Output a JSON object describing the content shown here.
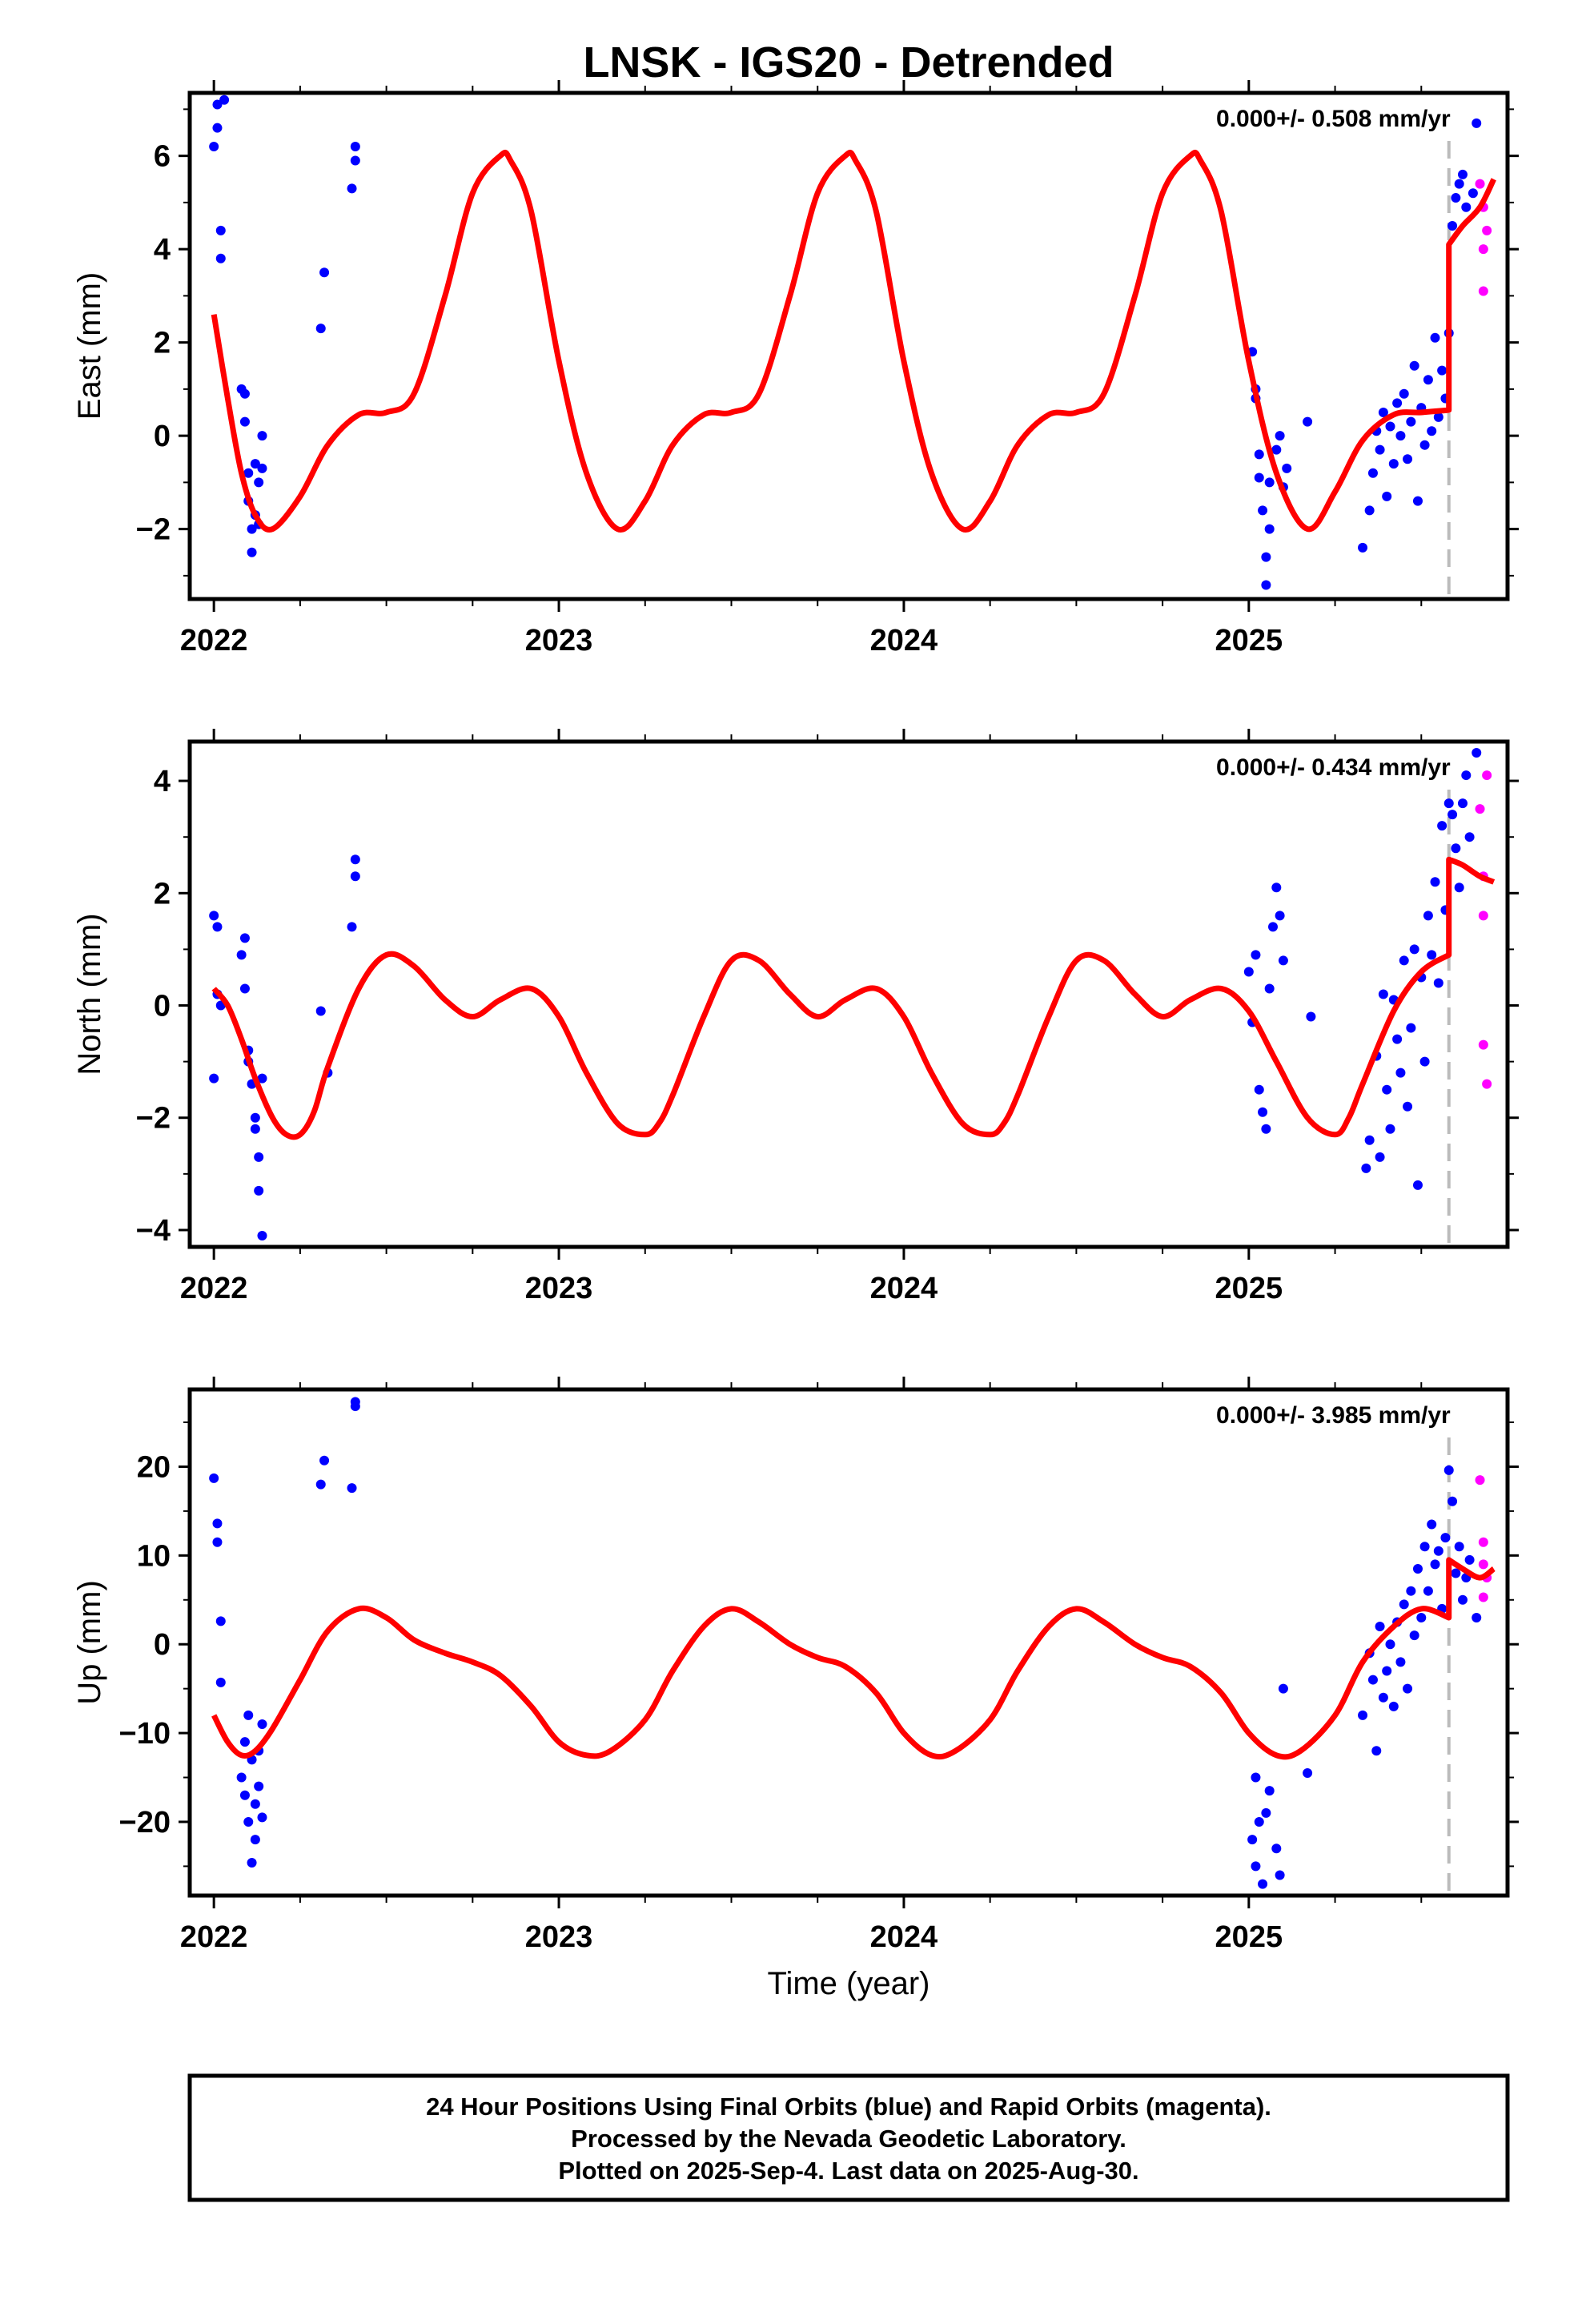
{
  "figure": {
    "title": "LNSK - IGS20 - Detrended",
    "xlabel": "Time (year)",
    "footer": [
      "24 Hour Positions Using Final Orbits (blue) and Rapid Orbits (magenta).",
      "Processed by the Nevada Geodetic Laboratory.",
      "Plotted on 2025-Sep-4. Last data on 2025-Aug-30."
    ]
  },
  "colors": {
    "final": "#0000ff",
    "rapid": "#ff00ff",
    "model": "#ff0000",
    "marker": "#bbbbbb",
    "frame": "#000000"
  },
  "chart_data": [
    {
      "type": "scatter",
      "component": "east",
      "ylabel": "East (mm)",
      "rate_label": "0.000+/- 0.508 mm/yr",
      "xlim": [
        2021.93,
        2025.75
      ],
      "ylim": [
        -3.5,
        7.35
      ],
      "x_ticks": [
        2022,
        2023,
        2024,
        2025
      ],
      "y_ticks": [
        -2,
        0,
        2,
        4,
        6
      ],
      "step_epoch": 2025.58,
      "model_series": {
        "name": "model",
        "x": [
          2022.0,
          2022.04,
          2022.08,
          2022.12,
          2022.17,
          2022.25,
          2022.33,
          2022.42,
          2022.5,
          2022.58,
          2022.67,
          2022.75,
          2022.83,
          2022.86,
          2022.92,
          2023.0,
          2023.08,
          2023.17,
          2023.25,
          2023.33,
          2023.42,
          2023.5,
          2023.58,
          2023.67,
          2023.75,
          2023.83,
          2023.86,
          2023.92,
          2024.0,
          2024.08,
          2024.17,
          2024.25,
          2024.33,
          2024.42,
          2024.5,
          2024.58,
          2024.67,
          2024.75,
          2024.83,
          2024.86,
          2024.92,
          2025.0,
          2025.08,
          2025.17,
          2025.25,
          2025.33,
          2025.42,
          2025.5,
          2025.58,
          2025.58,
          2025.62,
          2025.67,
          2025.71
        ],
        "y": [
          2.6,
          0.8,
          -0.8,
          -1.7,
          -2.0,
          -1.3,
          -0.2,
          0.45,
          0.5,
          0.9,
          3.0,
          5.2,
          6.0,
          5.9,
          4.8,
          1.6,
          -0.8,
          -2.0,
          -1.4,
          -0.2,
          0.45,
          0.5,
          0.9,
          3.0,
          5.2,
          6.0,
          5.9,
          4.8,
          1.6,
          -0.8,
          -2.0,
          -1.4,
          -0.2,
          0.45,
          0.5,
          0.9,
          3.0,
          5.2,
          6.0,
          5.9,
          4.8,
          1.6,
          -0.8,
          -2.0,
          -1.2,
          -0.1,
          0.45,
          0.5,
          0.55,
          4.1,
          4.5,
          4.9,
          5.5
        ]
      },
      "final_series": {
        "name": "final",
        "x": [
          2022.0,
          2022.01,
          2022.01,
          2022.02,
          2022.02,
          2022.03,
          2022.08,
          2022.09,
          2022.09,
          2022.1,
          2022.1,
          2022.11,
          2022.11,
          2022.12,
          2022.12,
          2022.13,
          2022.13,
          2022.14,
          2022.14,
          2022.31,
          2022.32,
          2022.4,
          2022.41,
          2022.41,
          2025.01,
          2025.02,
          2025.02,
          2025.03,
          2025.03,
          2025.04,
          2025.05,
          2025.05,
          2025.06,
          2025.06,
          2025.08,
          2025.09,
          2025.1,
          2025.11,
          2025.17,
          2025.33,
          2025.35,
          2025.36,
          2025.37,
          2025.38,
          2025.39,
          2025.4,
          2025.41,
          2025.42,
          2025.43,
          2025.44,
          2025.45,
          2025.46,
          2025.47,
          2025.48,
          2025.49,
          2025.5,
          2025.51,
          2025.52,
          2025.53,
          2025.54,
          2025.55,
          2025.56,
          2025.57,
          2025.58,
          2025.59,
          2025.6,
          2025.61,
          2025.62,
          2025.63,
          2025.65,
          2025.66
        ],
        "y": [
          6.2,
          7.1,
          6.6,
          4.4,
          3.8,
          7.2,
          1.0,
          0.9,
          0.3,
          -0.8,
          -1.4,
          -2.0,
          -2.5,
          -1.7,
          -0.6,
          -1.0,
          -1.9,
          0.0,
          -0.7,
          2.3,
          3.5,
          5.3,
          6.2,
          5.9,
          1.8,
          1.0,
          0.8,
          -0.4,
          -0.9,
          -1.6,
          -2.6,
          -3.2,
          -2.0,
          -1.0,
          -0.3,
          0.0,
          -1.1,
          -0.7,
          0.3,
          -2.4,
          -1.6,
          -0.8,
          0.1,
          -0.3,
          0.5,
          -1.3,
          0.2,
          -0.6,
          0.7,
          0.0,
          0.9,
          -0.5,
          0.3,
          1.5,
          -1.4,
          0.6,
          -0.2,
          1.2,
          0.1,
          2.1,
          0.4,
          1.4,
          0.8,
          2.2,
          4.5,
          5.1,
          5.4,
          5.6,
          4.9,
          5.2,
          6.7
        ]
      },
      "rapid_series": {
        "name": "rapid",
        "x": [
          2025.67,
          2025.68,
          2025.68,
          2025.68,
          2025.69
        ],
        "y": [
          5.4,
          4.9,
          4.0,
          3.1,
          4.4
        ]
      }
    },
    {
      "type": "scatter",
      "component": "north",
      "ylabel": "North (mm)",
      "rate_label": "0.000+/- 0.434 mm/yr",
      "xlim": [
        2021.93,
        2025.75
      ],
      "ylim": [
        -4.3,
        4.7
      ],
      "x_ticks": [
        2022,
        2023,
        2024,
        2025
      ],
      "y_ticks": [
        -4,
        -2,
        0,
        2,
        4
      ],
      "step_epoch": 2025.58,
      "model_series": {
        "name": "model",
        "x": [
          2022.0,
          2022.04,
          2022.08,
          2022.12,
          2022.17,
          2022.21,
          2022.25,
          2022.29,
          2022.33,
          2022.42,
          2022.5,
          2022.58,
          2022.67,
          2022.75,
          2022.83,
          2022.92,
          2023.0,
          2023.08,
          2023.17,
          2023.25,
          2023.29,
          2023.33,
          2023.42,
          2023.5,
          2023.58,
          2023.67,
          2023.75,
          2023.83,
          2023.92,
          2024.0,
          2024.08,
          2024.17,
          2024.25,
          2024.29,
          2024.33,
          2024.42,
          2024.5,
          2024.58,
          2024.67,
          2024.75,
          2024.83,
          2024.92,
          2025.0,
          2025.08,
          2025.17,
          2025.25,
          2025.29,
          2025.33,
          2025.42,
          2025.5,
          2025.58,
          2025.58,
          2025.62,
          2025.67,
          2025.71
        ],
        "y": [
          0.3,
          0.0,
          -0.6,
          -1.3,
          -2.0,
          -2.3,
          -2.3,
          -1.9,
          -1.1,
          0.3,
          0.9,
          0.7,
          0.1,
          -0.2,
          0.1,
          0.3,
          -0.2,
          -1.2,
          -2.1,
          -2.3,
          -2.1,
          -1.6,
          -0.2,
          0.8,
          0.8,
          0.2,
          -0.2,
          0.1,
          0.3,
          -0.2,
          -1.2,
          -2.1,
          -2.3,
          -2.1,
          -1.6,
          -0.2,
          0.8,
          0.8,
          0.2,
          -0.2,
          0.1,
          0.3,
          -0.1,
          -1.0,
          -2.0,
          -2.3,
          -2.0,
          -1.4,
          -0.1,
          0.6,
          0.9,
          2.6,
          2.5,
          2.3,
          2.2
        ]
      },
      "final_series": {
        "name": "final",
        "x": [
          2022.0,
          2022.0,
          2022.01,
          2022.01,
          2022.02,
          2022.08,
          2022.09,
          2022.09,
          2022.1,
          2022.1,
          2022.11,
          2022.12,
          2022.12,
          2022.13,
          2022.13,
          2022.14,
          2022.14,
          2022.31,
          2022.33,
          2022.4,
          2022.41,
          2022.41,
          2025.0,
          2025.01,
          2025.02,
          2025.03,
          2025.04,
          2025.05,
          2025.06,
          2025.07,
          2025.08,
          2025.09,
          2025.1,
          2025.18,
          2025.34,
          2025.35,
          2025.37,
          2025.38,
          2025.39,
          2025.4,
          2025.41,
          2025.42,
          2025.43,
          2025.44,
          2025.45,
          2025.46,
          2025.47,
          2025.48,
          2025.49,
          2025.5,
          2025.51,
          2025.52,
          2025.53,
          2025.54,
          2025.55,
          2025.56,
          2025.57,
          2025.58,
          2025.59,
          2025.6,
          2025.61,
          2025.62,
          2025.63,
          2025.64,
          2025.66
        ],
        "y": [
          1.6,
          -1.3,
          1.4,
          0.2,
          0.0,
          0.9,
          1.2,
          0.3,
          -0.8,
          -1.0,
          -1.4,
          -2.0,
          -2.2,
          -2.7,
          -3.3,
          -4.1,
          -1.3,
          -0.1,
          -1.2,
          1.4,
          2.3,
          2.6,
          0.6,
          -0.3,
          0.9,
          -1.5,
          -1.9,
          -2.2,
          0.3,
          1.4,
          2.1,
          1.6,
          0.8,
          -0.2,
          -2.9,
          -2.4,
          -0.9,
          -2.7,
          0.2,
          -1.5,
          -2.2,
          0.1,
          -0.6,
          -1.2,
          0.8,
          -1.8,
          -0.4,
          1.0,
          -3.2,
          0.5,
          -1.0,
          1.6,
          0.9,
          2.2,
          0.4,
          3.2,
          1.7,
          3.6,
          3.4,
          2.8,
          2.1,
          3.6,
          4.1,
          3.0,
          4.5
        ]
      },
      "rapid_series": {
        "name": "rapid",
        "x": [
          2025.67,
          2025.68,
          2025.68,
          2025.68,
          2025.69,
          2025.69
        ],
        "y": [
          3.5,
          2.3,
          1.6,
          -0.7,
          -1.4,
          4.1
        ]
      }
    },
    {
      "type": "scatter",
      "component": "up",
      "ylabel": "Up (mm)",
      "rate_label": "0.000+/- 3.985 mm/yr",
      "xlim": [
        2021.93,
        2025.75
      ],
      "ylim": [
        -28.3,
        28.7
      ],
      "x_ticks": [
        2022,
        2023,
        2024,
        2025
      ],
      "y_ticks": [
        -20,
        -10,
        0,
        10,
        20
      ],
      "step_epoch": 2025.58,
      "model_series": {
        "name": "model",
        "x": [
          2022.0,
          2022.04,
          2022.08,
          2022.12,
          2022.17,
          2022.25,
          2022.33,
          2022.42,
          2022.5,
          2022.58,
          2022.67,
          2022.75,
          2022.83,
          2022.92,
          2023.0,
          2023.08,
          2023.15,
          2023.25,
          2023.33,
          2023.42,
          2023.5,
          2023.58,
          2023.67,
          2023.75,
          2023.83,
          2023.92,
          2024.0,
          2024.08,
          2024.15,
          2024.25,
          2024.33,
          2024.42,
          2024.5,
          2024.58,
          2024.67,
          2024.75,
          2024.83,
          2024.92,
          2025.0,
          2025.08,
          2025.15,
          2025.25,
          2025.33,
          2025.42,
          2025.5,
          2025.58,
          2025.58,
          2025.62,
          2025.67,
          2025.71
        ],
        "y": [
          -8.0,
          -11.0,
          -12.5,
          -12.0,
          -9.5,
          -4.0,
          1.5,
          4.0,
          3.0,
          0.5,
          -1.0,
          -2.0,
          -3.5,
          -7.0,
          -11.0,
          -12.5,
          -12.0,
          -8.5,
          -3.0,
          2.0,
          4.0,
          2.5,
          0.0,
          -1.5,
          -2.5,
          -5.5,
          -10.0,
          -12.5,
          -12.0,
          -8.5,
          -3.0,
          2.0,
          4.0,
          2.5,
          0.0,
          -1.5,
          -2.5,
          -5.5,
          -10.0,
          -12.5,
          -12.0,
          -8.0,
          -2.0,
          2.0,
          4.0,
          3.0,
          9.5,
          8.5,
          7.5,
          8.5
        ]
      },
      "final_series": {
        "name": "final",
        "x": [
          2022.0,
          2022.01,
          2022.01,
          2022.02,
          2022.02,
          2022.08,
          2022.09,
          2022.09,
          2022.1,
          2022.1,
          2022.11,
          2022.11,
          2022.12,
          2022.12,
          2022.13,
          2022.13,
          2022.14,
          2022.14,
          2022.31,
          2022.32,
          2022.4,
          2022.41,
          2022.41,
          2025.01,
          2025.02,
          2025.02,
          2025.03,
          2025.04,
          2025.05,
          2025.06,
          2025.08,
          2025.09,
          2025.1,
          2025.17,
          2025.33,
          2025.35,
          2025.36,
          2025.37,
          2025.38,
          2025.39,
          2025.4,
          2025.41,
          2025.42,
          2025.43,
          2025.44,
          2025.45,
          2025.46,
          2025.47,
          2025.48,
          2025.49,
          2025.5,
          2025.51,
          2025.52,
          2025.53,
          2025.54,
          2025.55,
          2025.56,
          2025.57,
          2025.58,
          2025.59,
          2025.6,
          2025.61,
          2025.62,
          2025.63,
          2025.64,
          2025.66
        ],
        "y": [
          18.7,
          13.6,
          11.5,
          2.6,
          -4.3,
          -15.0,
          -11.0,
          -17.0,
          -8.0,
          -20.0,
          -24.6,
          -13.0,
          -22.0,
          -18.0,
          -16.0,
          -12.0,
          -19.5,
          -9.0,
          18.0,
          20.7,
          17.6,
          26.8,
          27.3,
          -22.0,
          -15.0,
          -25.0,
          -20.0,
          -27.0,
          -19.0,
          -16.5,
          -23.0,
          -26.0,
          -5.0,
          -14.5,
          -8.0,
          -1.0,
          -4.0,
          -12.0,
          2.0,
          -6.0,
          -3.0,
          0.0,
          -7.0,
          2.5,
          -2.0,
          4.5,
          -5.0,
          6.0,
          1.0,
          8.5,
          3.0,
          11.0,
          6.0,
          13.5,
          9.0,
          10.5,
          4.0,
          12.0,
          19.6,
          16.1,
          8.0,
          11.0,
          5.0,
          7.5,
          9.5,
          3.0
        ]
      },
      "rapid_series": {
        "name": "rapid",
        "x": [
          2025.67,
          2025.68,
          2025.68,
          2025.68,
          2025.69
        ],
        "y": [
          18.5,
          11.5,
          9.0,
          5.3,
          7.5
        ]
      }
    }
  ]
}
